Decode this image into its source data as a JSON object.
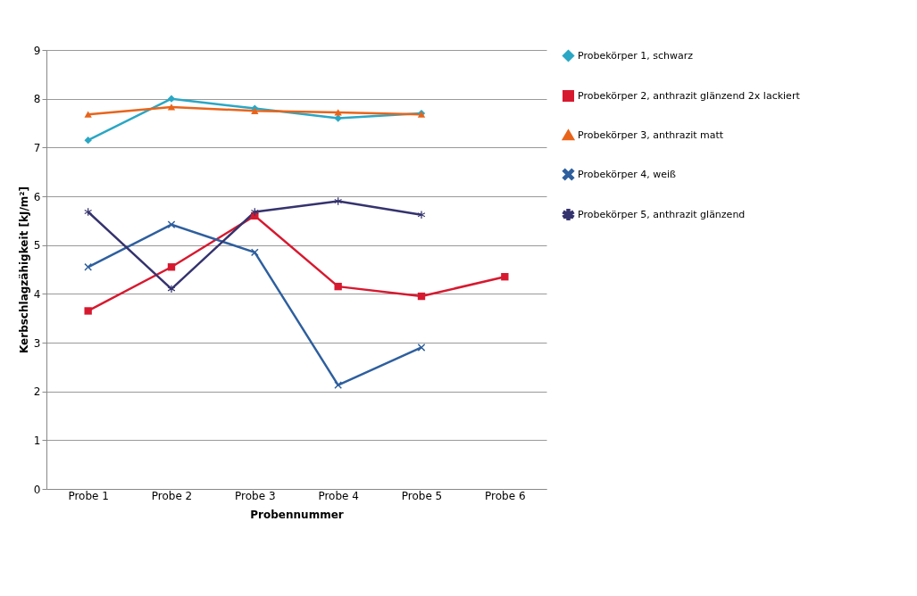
{
  "chart_data": {
    "type": "line",
    "xlabel": "Probennummer",
    "ylabel": "Kerbschlagzähigkeit [kJ/m²]",
    "categories": [
      "Probe 1",
      "Probe 2",
      "Probe 3",
      "Probe 4",
      "Probe 5",
      "Probe 6"
    ],
    "ylim": [
      0,
      9
    ],
    "yticks": [
      0,
      1,
      2,
      3,
      4,
      5,
      6,
      7,
      8,
      9
    ],
    "grid": "y",
    "legend": "right",
    "series": [
      {
        "name": "Probekörper 1, schwarz",
        "color": "#2aa7c4",
        "marker": "diamond",
        "values": [
          7.15,
          8.0,
          7.8,
          7.6,
          7.7,
          null
        ]
      },
      {
        "name": "Probekörper 2, anthrazit glänzend 2x lackiert",
        "color": "#d7192f",
        "marker": "square",
        "values": [
          3.65,
          4.55,
          5.6,
          4.15,
          3.95,
          4.35
        ]
      },
      {
        "name": "Probekörper 3, anthrazit matt",
        "color": "#e8641b",
        "marker": "triangle",
        "values": [
          7.68,
          7.83,
          7.75,
          7.72,
          7.68,
          null
        ]
      },
      {
        "name": "Probekörper 4, weiß",
        "color": "#2e5f9e",
        "marker": "cross",
        "values": [
          4.55,
          5.42,
          4.85,
          2.13,
          2.9,
          null
        ]
      },
      {
        "name": "Probekörper 5, anthrazit glänzend",
        "color": "#35336e",
        "marker": "star",
        "values": [
          5.68,
          4.1,
          5.68,
          5.9,
          5.62,
          null
        ]
      }
    ]
  }
}
